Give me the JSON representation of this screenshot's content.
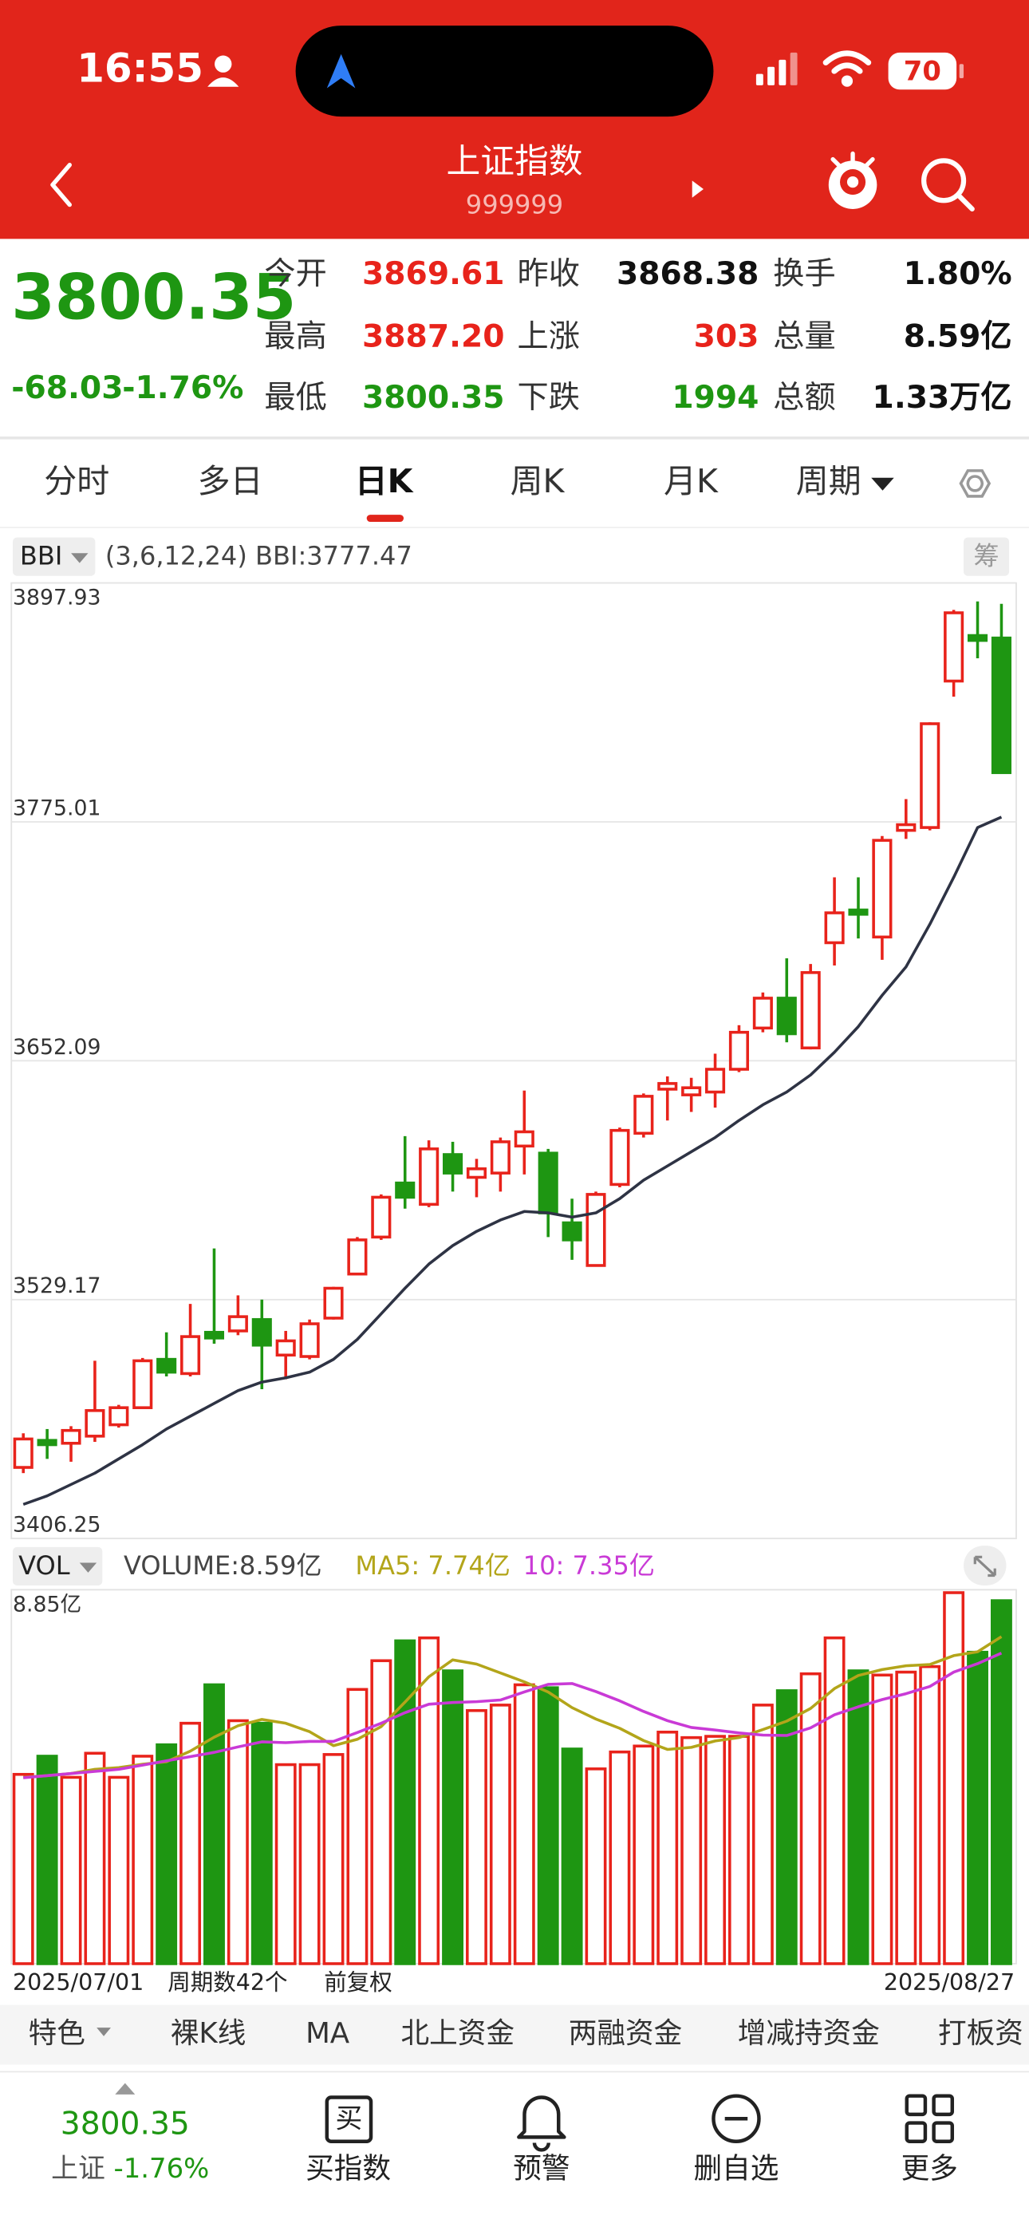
{
  "status_bar": {
    "time": "16:55",
    "battery": "70"
  },
  "header": {
    "title": "上证指数",
    "code": "999999"
  },
  "quote": {
    "price": "3800.35",
    "change": "-68.03",
    "change_pct": "-1.76%",
    "fields": [
      {
        "label": "今开",
        "value": "3869.61",
        "color": "#e8231b"
      },
      {
        "label": "昨收",
        "value": "3868.38",
        "color": "#111111"
      },
      {
        "label": "换手",
        "value": "1.80%",
        "color": "#111111"
      },
      {
        "label": "最高",
        "value": "3887.20",
        "color": "#e8231b"
      },
      {
        "label": "上涨",
        "value": "303",
        "color": "#e8231b"
      },
      {
        "label": "总量",
        "value": "8.59亿",
        "color": "#111111"
      },
      {
        "label": "最低",
        "value": "3800.35",
        "color": "#1e9612"
      },
      {
        "label": "下跌",
        "value": "1994",
        "color": "#1e9612"
      },
      {
        "label": "总额",
        "value": "1.33万亿",
        "color": "#111111"
      }
    ]
  },
  "tabs": [
    "分时",
    "多日",
    "日K",
    "周K",
    "月K",
    "周期"
  ],
  "indicator": {
    "params": "(3,6,12,24) BBI:3777.47",
    "chip": "筹"
  },
  "volume_indicator": {
    "label": "VOL",
    "volume": "VOLUME:8.59亿",
    "ma5": "MA5: 7.74亿",
    "ma10": "10: 7.35亿"
  },
  "axis_info": {
    "count": "周期数42个",
    "adjust": "前复权"
  },
  "feature_tabs": [
    "特色",
    "裸K线",
    "MA",
    "北上资金",
    "两融资金",
    "增减持资金",
    "打板资"
  ],
  "bottom_nav": {
    "price": "3800.35",
    "index_name": "上证",
    "change_pct": "-1.76%",
    "buy_icon": "买",
    "items": [
      "买指数",
      "预警",
      "删自选",
      "更多"
    ]
  },
  "chart_data": [
    {
      "type": "candlestick",
      "categories": [
        "2025/07/01",
        null,
        null,
        null,
        null,
        null,
        null,
        null,
        null,
        null,
        null,
        null,
        null,
        null,
        null,
        null,
        null,
        null,
        null,
        null,
        null,
        null,
        null,
        null,
        null,
        null,
        null,
        null,
        null,
        null,
        null,
        null,
        null,
        null,
        null,
        null,
        null,
        null,
        null,
        null,
        null,
        "2025/08/27"
      ],
      "open": [
        3442.84,
        3456.74,
        3455.27,
        3458.93,
        3464.79,
        3473.57,
        3498.44,
        3491.13,
        3512.35,
        3513.08,
        3518.93,
        3500.64,
        3499.91,
        3519.66,
        3542.35,
        3561.37,
        3589.18,
        3578.2,
        3603.81,
        3592.1,
        3594.3,
        3608.2,
        3604.54,
        3568.69,
        3546.74,
        3588.44,
        3614.78,
        3637.47,
        3634.54,
        3636.0,
        3647.71,
        3668.93,
        3684.3,
        3658.69,
        3712.83,
        3729.66,
        3715.76,
        3770.64,
        3772.1,
        3847.47,
        3870.88,
        3869.61
      ],
      "high": [
        3460.4,
        3462.59,
        3464.05,
        3497.71,
        3475.03,
        3499.18,
        3512.35,
        3526.98,
        3555.52,
        3531.37,
        3529.18,
        3513.08,
        3518.93,
        3535.76,
        3561.37,
        3583.32,
        3613.32,
        3611.13,
        3610.39,
        3601.61,
        3612.59,
        3636.74,
        3606.74,
        3581.13,
        3584.78,
        3617.71,
        3635.27,
        3644.05,
        3643.32,
        3655.76,
        3670.39,
        3687.22,
        3704.78,
        3701.86,
        3746.49,
        3746.49,
        3767.71,
        3786.73,
        3826.25,
        3884.05,
        3888.44,
        3887.2
      ],
      "low": [
        3439.91,
        3447.23,
        3445.76,
        3456.01,
        3463.32,
        3473.57,
        3489.66,
        3489.66,
        3506.49,
        3510.88,
        3483.08,
        3488.2,
        3498.44,
        3518.93,
        3542.35,
        3559.91,
        3576.0,
        3576.74,
        3584.78,
        3581.86,
        3584.78,
        3593.57,
        3561.37,
        3549.66,
        3546.74,
        3586.98,
        3612.59,
        3621.37,
        3625.76,
        3627.96,
        3646.25,
        3666.74,
        3661.61,
        3657.95,
        3701.13,
        3715.03,
        3704.05,
        3766.25,
        3770.64,
        3839.42,
        3859.17,
        3800.35
      ],
      "close": [
        3457.47,
        3454.54,
        3461.86,
        3472.1,
        3473.57,
        3497.71,
        3491.86,
        3510.15,
        3509.42,
        3520.4,
        3505.76,
        3507.96,
        3516.74,
        3535.03,
        3559.91,
        3581.86,
        3581.86,
        3606.74,
        3594.3,
        3596.49,
        3610.39,
        3615.52,
        3573.81,
        3559.91,
        3583.32,
        3616.25,
        3633.81,
        3640.39,
        3638.2,
        3647.71,
        3666.74,
        3684.3,
        3666.0,
        3697.47,
        3728.2,
        3727.47,
        3765.51,
        3773.56,
        3825.51,
        3882.59,
        3868.38,
        3800.35
      ],
      "up_color": "#e8231b",
      "down_color": "#1e9612",
      "series": [
        {
          "name": "BBI",
          "color": "#2e3344",
          "values": [
            3423.81,
            3428.2,
            3434.05,
            3439.91,
            3447.23,
            3454.54,
            3462.59,
            3469.18,
            3475.76,
            3482.35,
            3486.74,
            3488.93,
            3491.86,
            3498.44,
            3508.69,
            3521.86,
            3535.03,
            3547.47,
            3556.98,
            3564.3,
            3570.15,
            3574.54,
            3573.81,
            3571.61,
            3573.81,
            3581.13,
            3590.64,
            3597.96,
            3605.27,
            3612.59,
            3621.37,
            3629.42,
            3636.0,
            3644.78,
            3656.49,
            3669.66,
            3685.76,
            3700.39,
            3722.34,
            3746.49,
            3772.1,
            3777.47
          ]
        }
      ],
      "ylim": [
        3406.25,
        3897.93
      ],
      "yticks": [
        3406.25,
        3529.17,
        3652.09,
        3775.01,
        3897.93
      ],
      "grid": true
    },
    {
      "type": "bar",
      "values": [
        4.48,
        4.91,
        4.41,
        4.98,
        4.41,
        4.91,
        5.18,
        5.69,
        6.6,
        5.75,
        5.69,
        4.71,
        4.71,
        4.95,
        6.49,
        7.17,
        7.64,
        7.71,
        6.93,
        5.99,
        6.12,
        6.6,
        6.53,
        5.08,
        4.61,
        5.01,
        5.15,
        5.48,
        5.35,
        5.38,
        5.38,
        6.12,
        6.46,
        6.86,
        7.71,
        6.93,
        6.83,
        6.9,
        7.03,
        8.78,
        7.37,
        8.59
      ],
      "up_color": "#e8231b",
      "down_color": "#1e9612",
      "series": [
        {
          "color": "#b3a51a",
          "values": [
            4.41,
            4.45,
            4.5,
            4.6,
            4.64,
            4.72,
            4.78,
            5.03,
            5.36,
            5.63,
            5.78,
            5.69,
            5.49,
            5.16,
            5.31,
            5.61,
            6.19,
            6.79,
            7.19,
            7.09,
            6.88,
            6.67,
            6.43,
            6.06,
            5.79,
            5.57,
            5.28,
            5.07,
            5.12,
            5.27,
            5.35,
            5.54,
            5.74,
            6.04,
            6.51,
            6.82,
            6.96,
            7.05,
            7.08,
            7.29,
            7.38,
            7.74
          ]
        },
        {
          "color": "#c93ad6",
          "values": [
            4.4,
            4.45,
            4.5,
            4.55,
            4.6,
            4.7,
            4.8,
            4.9,
            5.0,
            5.13,
            5.25,
            5.23,
            5.26,
            5.26,
            5.47,
            5.69,
            5.94,
            6.14,
            6.18,
            6.2,
            6.24,
            6.43,
            6.61,
            6.63,
            6.44,
            6.22,
            5.97,
            5.75,
            5.59,
            5.53,
            5.46,
            5.41,
            5.4,
            5.58,
            5.89,
            6.08,
            6.25,
            6.39,
            6.56,
            6.9,
            7.1,
            7.35
          ]
        }
      ],
      "ylim": [
        0,
        8.85
      ],
      "yticks": [
        {
          "value": 8.85,
          "label": "8.85亿"
        }
      ],
      "grid": true
    }
  ]
}
